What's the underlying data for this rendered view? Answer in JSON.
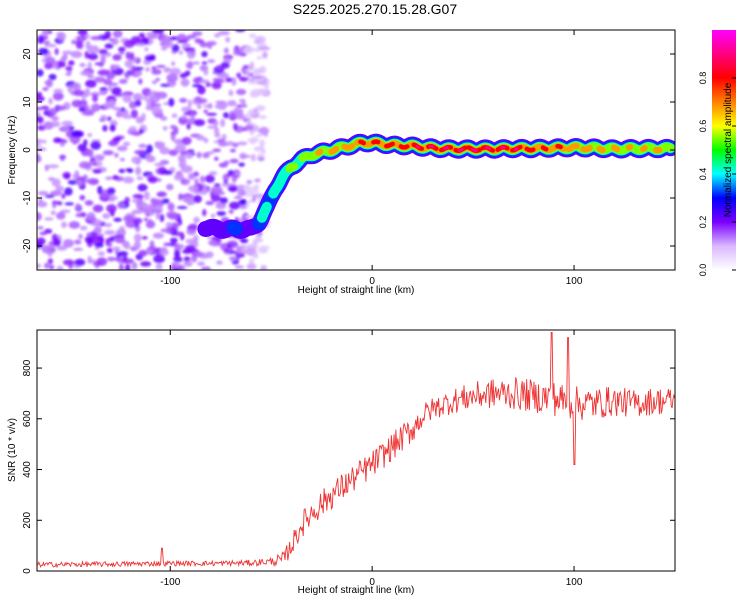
{
  "title": "S225.2025.270.15.28.G07",
  "chart_data": [
    {
      "type": "heatmap",
      "name": "spectrogram",
      "xlabel": "Height of straight line (km)",
      "ylabel": "Frequency (Hz)",
      "xlim": [
        -166,
        150
      ],
      "ylim": [
        -25,
        25
      ],
      "xticks": [
        -100,
        0,
        100
      ],
      "yticks": [
        -20,
        -10,
        0,
        10,
        20
      ],
      "colorbar": {
        "label": "Normalized spectral amplitude",
        "range": [
          0,
          1
        ],
        "ticks": [
          0.0,
          0.2,
          0.4,
          0.6,
          0.8
        ],
        "tick_labels": [
          "0.0",
          "0.2",
          "0.4",
          "0.6",
          "0.8"
        ],
        "colormap": [
          "#ffffff",
          "#d9b8ff",
          "#7a00ff",
          "#0000ff",
          "#00ffff",
          "#00ff00",
          "#ffff00",
          "#ff8000",
          "#ff0000",
          "#ff0080",
          "#ff00ff"
        ]
      },
      "noise_region": {
        "x_range": [
          -166,
          -55
        ],
        "y_range": [
          -25,
          25
        ],
        "level": 0.12
      },
      "ridge": {
        "x": [
          -93,
          -85,
          -75,
          -68,
          -60,
          -56,
          -52,
          -48,
          -44,
          -40,
          -35,
          -30,
          -25,
          -20,
          -15,
          -10,
          -5,
          0,
          10,
          20,
          30,
          40,
          50,
          60,
          70,
          80,
          90,
          100,
          110,
          120,
          130,
          140,
          148
        ],
        "freq": [
          -16,
          -16,
          -16.5,
          -16.5,
          -16.5,
          -15,
          -12,
          -8,
          -5.5,
          -3.5,
          -2,
          -1,
          -0.5,
          0,
          0.5,
          1,
          1.5,
          1.5,
          1,
          0.8,
          0.4,
          0.2,
          0.2,
          0.2,
          0.3,
          0.3,
          0.4,
          0.5,
          0.4,
          0.2,
          0.3,
          0.3,
          0.3
        ],
        "amplitude": [
          0.2,
          0.2,
          0.32,
          0.35,
          0.3,
          0.42,
          0.48,
          0.52,
          0.55,
          0.6,
          0.62,
          0.68,
          0.7,
          0.75,
          0.8,
          0.82,
          0.85,
          0.88,
          0.92,
          0.95,
          0.97,
          0.98,
          0.98,
          0.97,
          0.95,
          0.9,
          0.85,
          0.8,
          0.75,
          0.72,
          0.7,
          0.7,
          0.7
        ]
      }
    },
    {
      "type": "line",
      "name": "snr",
      "xlabel": "Height of straight line (km)",
      "ylabel": "SNR (10 * v/v)",
      "xlim": [
        -166,
        150
      ],
      "ylim": [
        0,
        950
      ],
      "xticks": [
        -100,
        0,
        100
      ],
      "yticks": [
        0,
        200,
        400,
        600,
        800
      ],
      "color": "#ee3333",
      "series": [
        {
          "name": "SNR",
          "trend_x": [
            -166,
            -130,
            -100,
            -80,
            -60,
            -50,
            -44,
            -40,
            -35,
            -30,
            -20,
            -10,
            0,
            10,
            20,
            25,
            30,
            40,
            50,
            60,
            70,
            80,
            90,
            100,
            110,
            120,
            130,
            140,
            150
          ],
          "trend_y": [
            25,
            27,
            30,
            30,
            32,
            38,
            45,
            100,
            180,
            230,
            300,
            360,
            420,
            490,
            560,
            610,
            640,
            670,
            690,
            700,
            700,
            690,
            680,
            660,
            660,
            670,
            660,
            670,
            670
          ],
          "noise_amplitude": [
            10,
            10,
            10,
            10,
            12,
            15,
            30,
            40,
            50,
            55,
            55,
            55,
            55,
            55,
            55,
            50,
            45,
            50,
            55,
            60,
            65,
            65,
            70,
            70,
            65,
            60,
            55,
            55,
            55
          ],
          "peaks": [
            [
              -104,
              90
            ],
            [
              89,
              940
            ],
            [
              97,
              920
            ],
            [
              100,
              420
            ]
          ]
        }
      ]
    }
  ]
}
